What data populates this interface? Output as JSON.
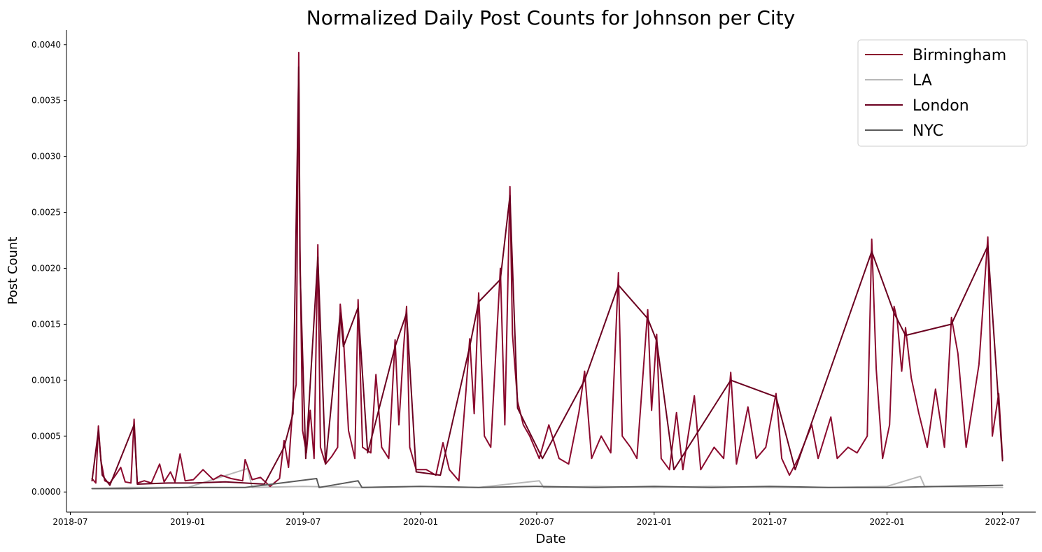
{
  "chart_data": {
    "type": "line",
    "title": "Normalized Daily Post Counts for Johnson per City",
    "xlabel": "Date",
    "ylabel": "Post Count",
    "x_range": [
      "2018-06-25",
      "2022-08-22"
    ],
    "ylim": [
      -0.00018,
      0.00413
    ],
    "x_ticks": [
      "2018-07",
      "2019-01",
      "2019-07",
      "2020-01",
      "2020-07",
      "2021-01",
      "2021-07",
      "2022-01",
      "2022-07"
    ],
    "y_ticks": [
      "0.0000",
      "0.0005",
      "0.0010",
      "0.0015",
      "0.0020",
      "0.0025",
      "0.0030",
      "0.0035",
      "0.0040"
    ],
    "grid": false,
    "legend_position": "top-right",
    "legend": [
      "Birmingham",
      "LA",
      "London",
      "NYC"
    ],
    "series": [
      {
        "name": "Birmingham",
        "color": "#8b0a2e",
        "points": [
          [
            "2018-08-04",
            0.00012
          ],
          [
            "2018-08-10",
            8e-05
          ],
          [
            "2018-08-14",
            0.00059
          ],
          [
            "2018-08-18",
            0.00028
          ],
          [
            "2018-08-24",
            0.0001
          ],
          [
            "2018-09-01",
            8e-05
          ],
          [
            "2018-09-10",
            0.00015
          ],
          [
            "2018-09-18",
            0.00022
          ],
          [
            "2018-09-25",
            9e-05
          ],
          [
            "2018-10-04",
            8e-05
          ],
          [
            "2018-10-09",
            0.00065
          ],
          [
            "2018-10-14",
            8e-05
          ],
          [
            "2018-10-25",
            0.0001
          ],
          [
            "2018-11-05",
            8e-05
          ],
          [
            "2018-11-18",
            0.00025
          ],
          [
            "2018-11-25",
            9e-05
          ],
          [
            "2018-12-05",
            0.00018
          ],
          [
            "2018-12-12",
            9e-05
          ],
          [
            "2018-12-20",
            0.00034
          ],
          [
            "2018-12-28",
            0.0001
          ],
          [
            "2019-01-10",
            0.00011
          ],
          [
            "2019-01-25",
            0.0002
          ],
          [
            "2019-02-10",
            0.00011
          ],
          [
            "2019-02-22",
            0.00015
          ],
          [
            "2019-03-10",
            0.00012
          ],
          [
            "2019-03-28",
            0.0001
          ],
          [
            "2019-04-01",
            0.00029
          ],
          [
            "2019-04-12",
            0.00011
          ],
          [
            "2019-04-25",
            0.00013
          ],
          [
            "2019-05-10",
            5e-05
          ],
          [
            "2019-05-25",
            0.00012
          ],
          [
            "2019-06-01",
            0.00046
          ],
          [
            "2019-06-08",
            0.00022
          ],
          [
            "2019-06-15",
            0.0008
          ],
          [
            "2019-06-20",
            0.00096
          ],
          [
            "2019-06-24",
            0.00393
          ],
          [
            "2019-06-26",
            0.00217
          ],
          [
            "2019-06-30",
            0.00055
          ],
          [
            "2019-07-06",
            0.00035
          ],
          [
            "2019-07-12",
            0.00073
          ],
          [
            "2019-07-18",
            0.0003
          ],
          [
            "2019-07-24",
            0.00221
          ],
          [
            "2019-07-28",
            0.0004
          ],
          [
            "2019-08-05",
            0.00025
          ],
          [
            "2019-08-15",
            0.00032
          ],
          [
            "2019-08-24",
            0.0004
          ],
          [
            "2019-08-28",
            0.00168
          ],
          [
            "2019-09-02",
            0.00139
          ],
          [
            "2019-09-10",
            0.00055
          ],
          [
            "2019-09-20",
            0.0003
          ],
          [
            "2019-09-25",
            0.00172
          ],
          [
            "2019-10-02",
            0.0004
          ],
          [
            "2019-10-15",
            0.00035
          ],
          [
            "2019-10-23",
            0.00105
          ],
          [
            "2019-11-01",
            0.0004
          ],
          [
            "2019-11-12",
            0.0003
          ],
          [
            "2019-11-22",
            0.00136
          ],
          [
            "2019-11-28",
            0.0006
          ],
          [
            "2019-12-05",
            0.00126
          ],
          [
            "2019-12-10",
            0.00166
          ],
          [
            "2019-12-15",
            0.0004
          ],
          [
            "2019-12-25",
            0.0002
          ],
          [
            "2020-01-10",
            0.0002
          ],
          [
            "2020-01-25",
            0.00015
          ],
          [
            "2020-02-05",
            0.00044
          ],
          [
            "2020-02-15",
            0.0002
          ],
          [
            "2020-03-01",
            0.0001
          ],
          [
            "2020-03-12",
            0.0009
          ],
          [
            "2020-03-18",
            0.00137
          ],
          [
            "2020-03-25",
            0.0007
          ],
          [
            "2020-04-01",
            0.00178
          ],
          [
            "2020-04-10",
            0.0005
          ],
          [
            "2020-04-20",
            0.0004
          ],
          [
            "2020-05-05",
            0.002
          ],
          [
            "2020-05-12",
            0.0006
          ],
          [
            "2020-05-20",
            0.00273
          ],
          [
            "2020-05-24",
            0.00141
          ],
          [
            "2020-06-01",
            0.00081
          ],
          [
            "2020-06-10",
            0.0006
          ],
          [
            "2020-06-20",
            0.0005
          ],
          [
            "2020-07-05",
            0.0003
          ],
          [
            "2020-07-20",
            0.0006
          ],
          [
            "2020-08-05",
            0.0003
          ],
          [
            "2020-08-20",
            0.00025
          ],
          [
            "2020-09-05",
            0.00071
          ],
          [
            "2020-09-14",
            0.00108
          ],
          [
            "2020-09-25",
            0.0003
          ],
          [
            "2020-10-10",
            0.0005
          ],
          [
            "2020-10-25",
            0.00035
          ],
          [
            "2020-11-06",
            0.00196
          ],
          [
            "2020-11-12",
            0.0005
          ],
          [
            "2020-11-25",
            0.0004
          ],
          [
            "2020-12-05",
            0.0003
          ],
          [
            "2020-12-22",
            0.00163
          ],
          [
            "2020-12-28",
            0.00073
          ],
          [
            "2021-01-05",
            0.00141
          ],
          [
            "2021-01-12",
            0.0003
          ],
          [
            "2021-01-25",
            0.0002
          ],
          [
            "2021-02-05",
            0.00071
          ],
          [
            "2021-02-15",
            0.0002
          ],
          [
            "2021-03-05",
            0.00086
          ],
          [
            "2021-03-15",
            0.0002
          ],
          [
            "2021-04-05",
            0.0004
          ],
          [
            "2021-04-20",
            0.0003
          ],
          [
            "2021-05-01",
            0.00107
          ],
          [
            "2021-05-10",
            0.00025
          ],
          [
            "2021-05-28",
            0.00076
          ],
          [
            "2021-06-10",
            0.0003
          ],
          [
            "2021-06-25",
            0.0004
          ],
          [
            "2021-07-11",
            0.00088
          ],
          [
            "2021-07-20",
            0.0003
          ],
          [
            "2021-08-01",
            0.00015
          ],
          [
            "2021-08-15",
            0.0003
          ],
          [
            "2021-09-05",
            0.0006
          ],
          [
            "2021-09-15",
            0.0003
          ],
          [
            "2021-10-05",
            0.00067
          ],
          [
            "2021-10-15",
            0.0003
          ],
          [
            "2021-11-01",
            0.0004
          ],
          [
            "2021-11-15",
            0.00035
          ],
          [
            "2021-12-01",
            0.0005
          ],
          [
            "2021-12-08",
            0.00226
          ],
          [
            "2021-12-15",
            0.0011
          ],
          [
            "2021-12-25",
            0.0003
          ],
          [
            "2022-01-05",
            0.0006
          ],
          [
            "2022-01-12",
            0.00166
          ],
          [
            "2022-01-17",
            0.00154
          ],
          [
            "2022-01-24",
            0.00108
          ],
          [
            "2022-01-30",
            0.00147
          ],
          [
            "2022-02-08",
            0.00102
          ],
          [
            "2022-02-20",
            0.0007
          ],
          [
            "2022-03-05",
            0.0004
          ],
          [
            "2022-03-18",
            0.00092
          ],
          [
            "2022-04-01",
            0.0004
          ],
          [
            "2022-04-12",
            0.00156
          ],
          [
            "2022-04-22",
            0.00124
          ],
          [
            "2022-05-05",
            0.0004
          ],
          [
            "2022-05-25",
            0.00114
          ],
          [
            "2022-06-08",
            0.00228
          ],
          [
            "2022-06-15",
            0.0005
          ],
          [
            "2022-06-25",
            0.00088
          ],
          [
            "2022-07-01",
            0.0003
          ]
        ]
      },
      {
        "name": "LA",
        "color": "#b8b8b8",
        "points": [
          [
            "2018-08-04",
            3e-05
          ],
          [
            "2018-10-01",
            4e-05
          ],
          [
            "2019-01-01",
            4e-05
          ],
          [
            "2019-04-05",
            0.00021
          ],
          [
            "2019-04-12",
            4e-05
          ],
          [
            "2019-07-01",
            5e-05
          ],
          [
            "2019-10-01",
            4e-05
          ],
          [
            "2020-01-01",
            5e-05
          ],
          [
            "2020-04-01",
            4e-05
          ],
          [
            "2020-07-05",
            0.0001
          ],
          [
            "2020-07-12",
            4e-05
          ],
          [
            "2020-10-01",
            5e-05
          ],
          [
            "2021-01-01",
            4e-05
          ],
          [
            "2021-04-01",
            5e-05
          ],
          [
            "2021-07-01",
            4e-05
          ],
          [
            "2021-10-01",
            4e-05
          ],
          [
            "2022-01-01",
            5e-05
          ],
          [
            "2022-02-22",
            0.00014
          ],
          [
            "2022-03-01",
            5e-05
          ],
          [
            "2022-07-01",
            4e-05
          ]
        ]
      },
      {
        "name": "London",
        "color": "#6b0020",
        "points": [
          [
            "2018-08-04",
            0.0001
          ],
          [
            "2018-08-14",
            0.00055
          ],
          [
            "2018-08-20",
            0.00015
          ],
          [
            "2018-09-01",
            6e-05
          ],
          [
            "2018-10-09",
            0.0006
          ],
          [
            "2018-10-14",
            7e-05
          ],
          [
            "2018-12-01",
            8e-05
          ],
          [
            "2019-01-10",
            8e-05
          ],
          [
            "2019-03-01",
            9e-05
          ],
          [
            "2019-05-01",
            7e-05
          ],
          [
            "2019-06-01",
            0.0004
          ],
          [
            "2019-06-15",
            0.0007
          ],
          [
            "2019-06-24",
            0.0038
          ],
          [
            "2019-06-26",
            0.002
          ],
          [
            "2019-07-05",
            0.0003
          ],
          [
            "2019-07-24",
            0.0021
          ],
          [
            "2019-08-05",
            0.00025
          ],
          [
            "2019-08-28",
            0.0016
          ],
          [
            "2019-09-02",
            0.0013
          ],
          [
            "2019-09-25",
            0.00165
          ],
          [
            "2019-10-10",
            0.00035
          ],
          [
            "2019-11-22",
            0.0013
          ],
          [
            "2019-12-10",
            0.0016
          ],
          [
            "2019-12-25",
            0.00018
          ],
          [
            "2020-02-01",
            0.00015
          ],
          [
            "2020-03-18",
            0.0013
          ],
          [
            "2020-04-01",
            0.0017
          ],
          [
            "2020-05-05",
            0.0019
          ],
          [
            "2020-05-20",
            0.00265
          ],
          [
            "2020-06-01",
            0.00075
          ],
          [
            "2020-07-10",
            0.0003
          ],
          [
            "2020-09-14",
            0.001
          ],
          [
            "2020-11-06",
            0.00185
          ],
          [
            "2020-12-22",
            0.00155
          ],
          [
            "2021-01-05",
            0.00135
          ],
          [
            "2021-02-01",
            0.0002
          ],
          [
            "2021-05-01",
            0.001
          ],
          [
            "2021-07-11",
            0.00085
          ],
          [
            "2021-08-10",
            0.0002
          ],
          [
            "2021-12-08",
            0.00215
          ],
          [
            "2022-01-12",
            0.0016
          ],
          [
            "2022-01-30",
            0.0014
          ],
          [
            "2022-04-12",
            0.0015
          ],
          [
            "2022-06-08",
            0.0022
          ],
          [
            "2022-07-01",
            0.00028
          ]
        ]
      },
      {
        "name": "NYC",
        "color": "#5a5a5a",
        "points": [
          [
            "2018-08-04",
            3e-05
          ],
          [
            "2018-10-01",
            3e-05
          ],
          [
            "2019-01-01",
            4e-05
          ],
          [
            "2019-04-01",
            4e-05
          ],
          [
            "2019-07-22",
            0.00012
          ],
          [
            "2019-07-26",
            4e-05
          ],
          [
            "2019-09-25",
            0.0001
          ],
          [
            "2019-10-01",
            4e-05
          ],
          [
            "2020-01-01",
            5e-05
          ],
          [
            "2020-04-01",
            4e-05
          ],
          [
            "2020-07-01",
            5e-05
          ],
          [
            "2020-10-01",
            4e-05
          ],
          [
            "2021-01-01",
            5e-05
          ],
          [
            "2021-04-01",
            4e-05
          ],
          [
            "2021-07-01",
            5e-05
          ],
          [
            "2021-10-01",
            4e-05
          ],
          [
            "2022-01-01",
            4e-05
          ],
          [
            "2022-07-01",
            6e-05
          ]
        ]
      }
    ]
  }
}
